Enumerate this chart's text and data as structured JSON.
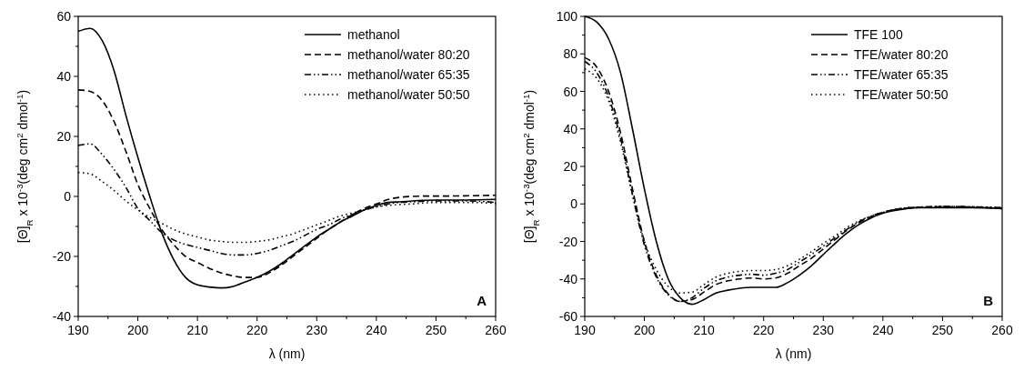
{
  "chart_data": [
    {
      "type": "line",
      "annotations": [
        "A"
      ],
      "xlabel": "λ (nm)",
      "ylabel": "[Θ]$_{R}$ x 10$^{-3}$(deg cm$^{2}$ dmol$^{-1}$)",
      "legend": "top right",
      "grid": false,
      "marker": "none",
      "x": [
        190,
        192,
        194,
        196,
        198,
        200,
        202,
        204,
        206,
        208,
        210,
        212,
        214,
        216,
        218,
        220,
        222,
        224,
        226,
        228,
        230,
        232,
        234,
        236,
        238,
        240,
        242,
        244,
        246,
        248,
        250,
        255,
        260
      ],
      "xlim": [
        190,
        260
      ],
      "xticks": [
        190,
        {
          "value": 195,
          "label": null
        },
        200,
        {
          "value": 205,
          "label": null
        },
        210,
        {
          "value": 215,
          "label": null
        },
        220,
        {
          "value": 225,
          "label": null
        },
        230,
        {
          "value": 235,
          "label": null
        },
        240,
        {
          "value": 245,
          "label": null
        },
        250,
        {
          "value": 255,
          "label": null
        },
        260
      ],
      "ylim": [
        -40,
        60
      ],
      "yticks": [
        -40,
        {
          "value": -30,
          "label": null
        },
        -20,
        {
          "value": -10,
          "label": null
        },
        0,
        {
          "value": 10,
          "label": null
        },
        20,
        {
          "value": 30,
          "label": null
        },
        40,
        {
          "value": 50,
          "label": null
        },
        60
      ],
      "series": [
        {
          "name": "methanol",
          "color": "#000000",
          "line_style": "solid",
          "values": [
            55,
            56,
            52,
            42,
            27,
            13,
            0,
            -12,
            -21,
            -27,
            -29.5,
            -30.2,
            -30.5,
            -30,
            -28.5,
            -27,
            -25,
            -22.5,
            -19.5,
            -16.5,
            -13.5,
            -11,
            -8.5,
            -6.5,
            -4.5,
            -3,
            -2,
            -1.8,
            -1.5,
            -1.3,
            -1.2,
            -1.2,
            -1
          ]
        },
        {
          "name": "methanol/water 80:20",
          "color": "#000000",
          "line_style": "dashed",
          "values": [
            35.5,
            35,
            32,
            25,
            15,
            4,
            -4,
            -11,
            -16,
            -20,
            -22,
            -24,
            -25.5,
            -26.5,
            -27,
            -27,
            -25.5,
            -23,
            -20,
            -17,
            -14,
            -11,
            -8.5,
            -6,
            -4,
            -2.5,
            -1,
            -0.3,
            0,
            0.1,
            0.1,
            0.2,
            0.4
          ]
        },
        {
          "name": "methanol/water 65:35",
          "color": "#000000",
          "line_style": "dashdot",
          "values": [
            17,
            17.5,
            14,
            9,
            3,
            -4,
            -8,
            -12,
            -14.5,
            -16,
            -17,
            -18,
            -19,
            -19.5,
            -19.5,
            -19,
            -18,
            -16.5,
            -15,
            -13,
            -11,
            -9.5,
            -7.5,
            -6,
            -4.5,
            -3.5,
            -2.5,
            -2,
            -1.8,
            -1.6,
            -1.5,
            -1.5,
            -2
          ]
        },
        {
          "name": "methanol/water 50:50",
          "color": "#000000",
          "line_style": "dotted",
          "values": [
            8,
            7.5,
            5,
            2,
            -1.5,
            -4.5,
            -7,
            -9,
            -11,
            -12.5,
            -13.5,
            -14.5,
            -15,
            -15.3,
            -15.3,
            -15,
            -14.5,
            -13.5,
            -12.5,
            -11,
            -9.5,
            -8,
            -6.5,
            -5.5,
            -4.5,
            -3.5,
            -3,
            -2.7,
            -2.5,
            -2.2,
            -2,
            -2,
            -2.3
          ]
        }
      ]
    },
    {
      "type": "line",
      "annotations": [
        "B"
      ],
      "xlabel": "λ (nm)",
      "ylabel": "[Θ]$_{R}$ x 10$^{-3}$(deg cm$^{2}$ dmol$^{-1}$)",
      "legend": "top right",
      "grid": false,
      "marker": "none",
      "x": [
        190,
        192,
        194,
        196,
        198,
        200,
        202,
        204,
        206,
        208,
        210,
        212,
        214,
        216,
        218,
        220,
        222,
        224,
        226,
        228,
        230,
        232,
        234,
        236,
        238,
        240,
        242,
        244,
        246,
        248,
        250,
        255,
        260
      ],
      "xlim": [
        190,
        260
      ],
      "xticks": [
        190,
        {
          "value": 195,
          "label": null
        },
        200,
        {
          "value": 205,
          "label": null
        },
        210,
        {
          "value": 215,
          "label": null
        },
        220,
        {
          "value": 225,
          "label": null
        },
        230,
        {
          "value": 235,
          "label": null
        },
        240,
        {
          "value": 245,
          "label": null
        },
        250,
        {
          "value": 255,
          "label": null
        },
        260
      ],
      "ylim": [
        -60,
        100
      ],
      "yticks": [
        -60,
        {
          "value": -50,
          "label": null
        },
        -40,
        {
          "value": -30,
          "label": null
        },
        -20,
        {
          "value": -10,
          "label": null
        },
        0,
        {
          "value": 10,
          "label": null
        },
        20,
        {
          "value": 30,
          "label": null
        },
        40,
        {
          "value": 50,
          "label": null
        },
        60,
        {
          "value": 70,
          "label": null
        },
        80,
        {
          "value": 90,
          "label": null
        },
        100
      ],
      "series": [
        {
          "name": "TFE 100",
          "color": "#000000",
          "line_style": "solid",
          "values": [
            100,
            97,
            88,
            70,
            40,
            8,
            -20,
            -40,
            -50,
            -53.5,
            -51,
            -47.5,
            -46,
            -45,
            -44.5,
            -44.5,
            -44.5,
            -42,
            -38,
            -33,
            -27,
            -21,
            -15.5,
            -11,
            -7.5,
            -5,
            -3.5,
            -2.5,
            -2,
            -2,
            -2,
            -2,
            -2.5
          ]
        },
        {
          "name": "TFE/water 80:20",
          "color": "#000000",
          "line_style": "dashed",
          "values": [
            78,
            73,
            60,
            38,
            8,
            -20,
            -38,
            -48,
            -52,
            -51,
            -47,
            -43,
            -41,
            -40,
            -39.5,
            -40,
            -39.5,
            -37,
            -33,
            -29,
            -24,
            -19,
            -14,
            -10,
            -7,
            -4.5,
            -3,
            -2.2,
            -1.8,
            -1.6,
            -1.5,
            -1.8,
            -2.3
          ]
        },
        {
          "name": "TFE/water 65:35",
          "color": "#000000",
          "line_style": "dashdot",
          "values": [
            76,
            70,
            57,
            35,
            5,
            -22,
            -39,
            -48.5,
            -52,
            -50,
            -45,
            -41,
            -39,
            -38,
            -37.5,
            -38,
            -37,
            -35,
            -31,
            -27,
            -22.5,
            -18,
            -13.5,
            -9.5,
            -6.5,
            -4.5,
            -3,
            -2.2,
            -1.8,
            -1.5,
            -1.3,
            -1.5,
            -2
          ]
        },
        {
          "name": "TFE/water 50:50",
          "color": "#000000",
          "line_style": "dotted",
          "values": [
            72,
            67,
            55,
            33,
            5,
            -20,
            -35,
            -44,
            -47.5,
            -47,
            -43,
            -39,
            -37,
            -36,
            -35.5,
            -35.5,
            -35,
            -33,
            -29.5,
            -25.5,
            -21,
            -17,
            -12.5,
            -9,
            -6.5,
            -4.5,
            -3,
            -2,
            -1.7,
            -1.5,
            -1.3,
            -1.5,
            -2
          ]
        }
      ]
    }
  ]
}
